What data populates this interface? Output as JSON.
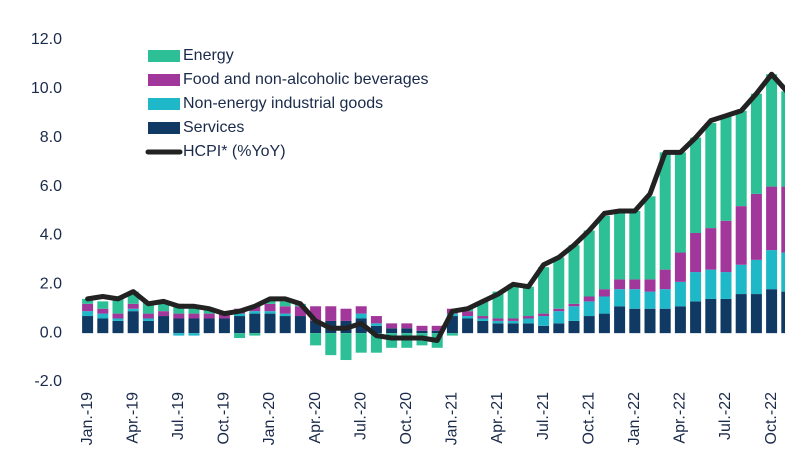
{
  "chart_data": {
    "type": "bar",
    "stacked": true,
    "categories": [
      "Jan.-19",
      null,
      null,
      "Apr.-19",
      null,
      null,
      "Jul.-19",
      null,
      null,
      "Oct.-19",
      null,
      null,
      "Jan.-20",
      null,
      null,
      "Apr.-20",
      null,
      null,
      "Jul.-20",
      null,
      null,
      "Oct.-20",
      null,
      null,
      "Jan.-21",
      null,
      null,
      "Apr.-21",
      null,
      null,
      "Jul.-21",
      null,
      null,
      "Oct.-21",
      null,
      null,
      "Jan.-22",
      null,
      null,
      "Apr.-22",
      null,
      null,
      "Jul.-22",
      null,
      null,
      "Oct.-22",
      null
    ],
    "ylim": [
      -2,
      12
    ],
    "yticks": [
      {
        "value": -2,
        "label": "-2.0"
      },
      {
        "value": 0,
        "label": "0.0"
      },
      {
        "value": 2,
        "label": "2.0"
      },
      {
        "value": 4,
        "label": "4.0"
      },
      {
        "value": 6,
        "label": "6.0"
      },
      {
        "value": 8,
        "label": "8.0"
      },
      {
        "value": 10,
        "label": "10.0"
      },
      {
        "value": 12,
        "label": "12.0"
      }
    ],
    "grid": false,
    "series": [
      {
        "name": "Services",
        "color": "#103a63",
        "type": "bar",
        "values": [
          0.7,
          0.6,
          0.5,
          0.9,
          0.5,
          0.7,
          0.6,
          0.6,
          0.6,
          0.6,
          0.7,
          0.8,
          0.8,
          0.7,
          0.7,
          0.5,
          0.5,
          0.5,
          0.6,
          0.3,
          0.2,
          0.2,
          0.1,
          0.1,
          0.7,
          0.6,
          0.5,
          0.4,
          0.4,
          0.4,
          0.3,
          0.4,
          0.5,
          0.7,
          0.8,
          1.1,
          1.0,
          1.0,
          1.0,
          1.1,
          1.3,
          1.4,
          1.4,
          1.6,
          1.6,
          1.8,
          1.7
        ]
      },
      {
        "name": "Non-energy industrial goods",
        "color": "#1fb8c8",
        "type": "bar",
        "values": [
          0.2,
          0.2,
          0.1,
          0.1,
          0.1,
          0.0,
          -0.1,
          -0.1,
          0.0,
          0.0,
          0.1,
          0.1,
          0.1,
          0.1,
          0.0,
          0.0,
          0.0,
          0.0,
          0.2,
          0.1,
          0.0,
          0.0,
          0.0,
          0.0,
          0.1,
          0.1,
          0.1,
          0.1,
          0.1,
          0.2,
          0.4,
          0.5,
          0.6,
          0.6,
          0.7,
          0.7,
          0.8,
          0.7,
          0.8,
          1.0,
          1.2,
          1.2,
          1.1,
          1.2,
          1.4,
          1.6,
          1.6
        ]
      },
      {
        "name": "Food and non-alcoholic beverages",
        "color": "#a1379a",
        "type": "bar",
        "values": [
          0.3,
          0.2,
          0.2,
          0.2,
          0.2,
          0.2,
          0.2,
          0.2,
          0.2,
          0.2,
          0.2,
          0.2,
          0.3,
          0.3,
          0.4,
          0.6,
          0.6,
          0.5,
          0.3,
          0.3,
          0.2,
          0.2,
          0.2,
          0.2,
          0.2,
          0.2,
          0.1,
          0.1,
          0.1,
          0.1,
          0.1,
          0.1,
          0.1,
          0.2,
          0.3,
          0.4,
          0.4,
          0.5,
          0.8,
          1.2,
          1.6,
          1.7,
          2.1,
          2.4,
          2.7,
          2.6,
          2.7
        ]
      },
      {
        "name": "Energy",
        "color": "#2dbf96",
        "type": "bar",
        "values": [
          0.2,
          0.3,
          0.6,
          0.5,
          0.5,
          0.4,
          0.4,
          0.3,
          0.2,
          0.0,
          -0.2,
          -0.1,
          0.2,
          0.2,
          0.1,
          -0.5,
          -0.9,
          -1.1,
          -0.8,
          -0.8,
          -0.6,
          -0.6,
          -0.5,
          -0.6,
          -0.1,
          0.1,
          0.6,
          1.1,
          1.4,
          1.2,
          1.9,
          2.1,
          2.4,
          2.7,
          3.0,
          2.8,
          2.8,
          3.4,
          4.8,
          4.1,
          3.9,
          4.3,
          4.3,
          3.9,
          4.1,
          4.6,
          3.9
        ]
      },
      {
        "name": "HCPI* (%YoY)",
        "color": "#222222",
        "type": "line",
        "values": [
          1.4,
          1.5,
          1.4,
          1.7,
          1.2,
          1.3,
          1.1,
          1.1,
          1.0,
          0.8,
          0.9,
          1.1,
          1.4,
          1.4,
          1.2,
          0.5,
          0.2,
          0.2,
          0.4,
          -0.1,
          -0.2,
          -0.2,
          -0.2,
          -0.3,
          0.9,
          1.0,
          1.3,
          1.6,
          2.0,
          1.9,
          2.8,
          3.1,
          3.6,
          4.2,
          4.9,
          5.0,
          5.0,
          5.7,
          7.4,
          7.4,
          8.0,
          8.7,
          8.9,
          9.1,
          9.8,
          10.6,
          9.9
        ]
      }
    ],
    "legend_order": [
      3,
      2,
      1,
      0,
      4
    ]
  }
}
